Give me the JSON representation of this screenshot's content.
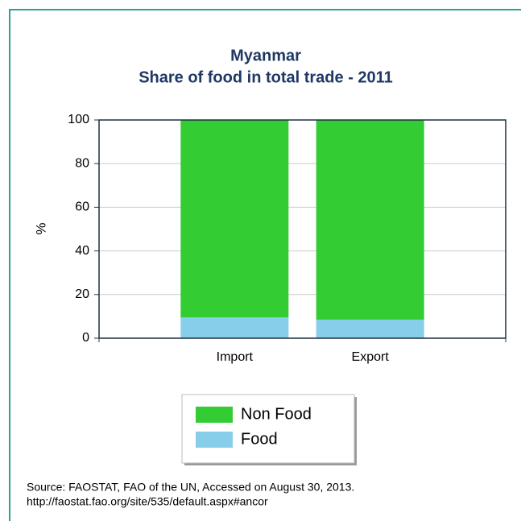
{
  "chart_data": {
    "type": "stacked_bar",
    "title": "Myanmar",
    "subtitle": "Share of food in total trade - 2011",
    "y_label": "%",
    "categories": [
      "Import",
      "Export"
    ],
    "series": [
      {
        "name": "Food",
        "color": "#87ceeb",
        "values": [
          9.5,
          8.5
        ]
      },
      {
        "name": "Non Food",
        "color": "#33cc33",
        "values": [
          90.5,
          91.5
        ]
      }
    ],
    "ylim": [
      0,
      100
    ],
    "yticks": [
      0,
      20,
      40,
      60,
      80,
      100
    ],
    "grid": true,
    "source": [
      "Source: FAOSTAT, FAO of the UN, Accessed on August 30, 2013.",
      "http://faostat.fao.org/site/535/default.aspx#ancor"
    ]
  }
}
